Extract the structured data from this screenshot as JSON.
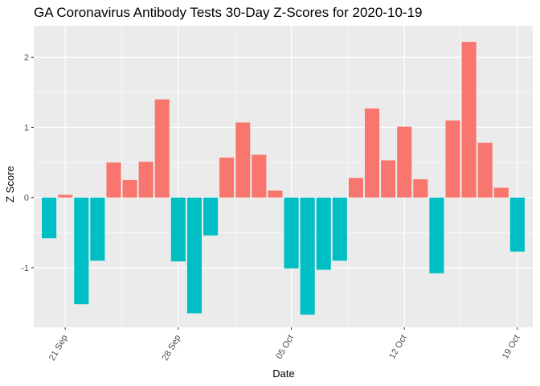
{
  "chart_data": {
    "type": "bar",
    "title": "GA Coronavirus Antibody Tests 30-Day Z-Scores for 2020-10-19",
    "xlabel": "Date",
    "ylabel": "Z Score",
    "x": [
      "2020-09-20",
      "2020-09-21",
      "2020-09-22",
      "2020-09-23",
      "2020-09-24",
      "2020-09-25",
      "2020-09-26",
      "2020-09-27",
      "2020-09-28",
      "2020-09-29",
      "2020-09-30",
      "2020-10-01",
      "2020-10-02",
      "2020-10-03",
      "2020-10-04",
      "2020-10-05",
      "2020-10-06",
      "2020-10-07",
      "2020-10-08",
      "2020-10-09",
      "2020-10-10",
      "2020-10-11",
      "2020-10-12",
      "2020-10-13",
      "2020-10-14",
      "2020-10-15",
      "2020-10-16",
      "2020-10-17",
      "2020-10-18",
      "2020-10-19"
    ],
    "values": [
      -0.58,
      0.04,
      -1.52,
      -0.9,
      0.5,
      0.25,
      0.51,
      1.4,
      -0.91,
      -1.65,
      -0.54,
      0.57,
      1.07,
      0.61,
      0.1,
      -1.01,
      -1.67,
      -1.03,
      -0.9,
      0.28,
      1.27,
      0.53,
      1.01,
      0.26,
      -1.08,
      1.1,
      2.22,
      0.78,
      0.14,
      -0.77
    ],
    "ylim": [
      -1.85,
      2.45
    ],
    "yticks": [
      -1,
      0,
      1,
      2
    ],
    "xticks": [
      {
        "date": "2020-09-21",
        "label": "21 Sep"
      },
      {
        "date": "2020-09-28",
        "label": "28 Sep"
      },
      {
        "date": "2020-10-05",
        "label": "05 Oct"
      },
      {
        "date": "2020-10-12",
        "label": "12 Oct"
      },
      {
        "date": "2020-10-19",
        "label": "19 Oct"
      }
    ],
    "colors": {
      "positive": "#F8766D",
      "negative": "#00BFC4",
      "panel": "#EBEBEB",
      "grid": "#FFFFFF"
    },
    "legend": "none",
    "grid": true
  }
}
